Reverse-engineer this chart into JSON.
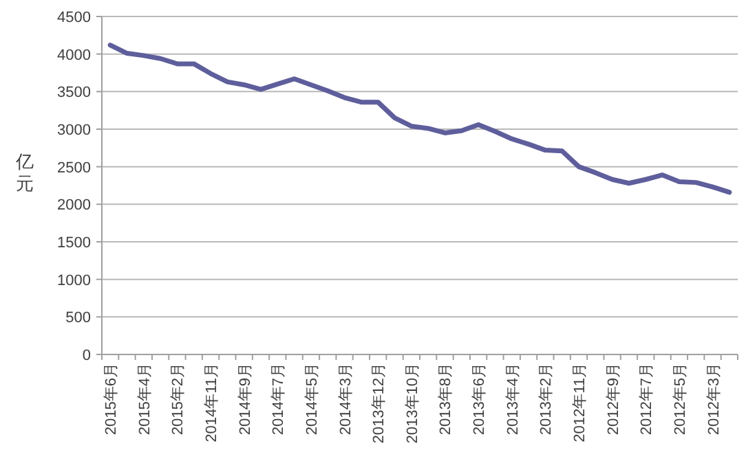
{
  "chart_data": {
    "type": "line",
    "ylabel": "亿元",
    "categories": [
      "2015年6月",
      null,
      "2015年4月",
      null,
      "2015年2月",
      null,
      "2014年11月",
      null,
      "2014年9月",
      null,
      "2014年7月",
      null,
      "2014年5月",
      null,
      "2014年3月",
      null,
      "2013年12月",
      null,
      "2013年10月",
      null,
      "2013年8月",
      null,
      "2013年6月",
      null,
      "2013年4月",
      null,
      "2013年2月",
      null,
      "2012年11月",
      null,
      "2012年9月",
      null,
      "2012年7月",
      null,
      "2012年5月",
      null,
      "2012年3月",
      null
    ],
    "series": [
      {
        "color": "#5f5e9c",
        "values": [
          4120,
          4010,
          3980,
          3940,
          3870,
          3870,
          3740,
          3630,
          3590,
          3530,
          3600,
          3670,
          3590,
          3510,
          3420,
          3360,
          3360,
          3150,
          3040,
          3010,
          2950,
          2980,
          3060,
          2970,
          2870,
          2800,
          2720,
          2710,
          2500,
          2420,
          2330,
          2280,
          2330,
          2390,
          2300,
          2290,
          2230,
          2160
        ]
      }
    ],
    "ylim": [
      0,
      4500
    ],
    "yticks": [
      0,
      500,
      1000,
      1500,
      2000,
      2500,
      3000,
      3500,
      4000,
      4500
    ],
    "grid": "y",
    "line_style": "solid"
  }
}
